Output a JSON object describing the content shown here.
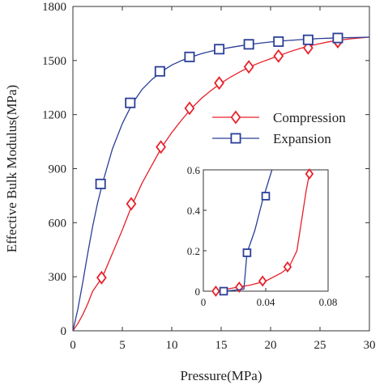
{
  "chart_data": [
    {
      "type": "line",
      "xlabel": "Pressure(MPa)",
      "ylabel": "Effective Bulk Modulus(MPa)",
      "xlim": [
        0,
        30
      ],
      "ylim": [
        0,
        1800
      ],
      "xticks": [
        0,
        5,
        10,
        15,
        20,
        25,
        30
      ],
      "yticks": [
        0,
        300,
        600,
        900,
        1200,
        1500,
        1800
      ],
      "grid": false,
      "legend_position": "center-right",
      "series": [
        {
          "name": "Compression",
          "color": "#e8202a",
          "marker": "diamond",
          "curve_x": [
            0,
            0.5,
            1,
            1.5,
            2,
            2.5,
            3,
            4,
            5,
            6,
            7,
            8,
            9,
            10,
            11,
            12,
            13,
            14,
            15,
            16,
            17,
            18,
            19,
            20,
            21,
            22,
            23,
            24,
            25,
            26,
            27,
            28,
            29,
            30
          ],
          "curve_y": [
            0,
            40,
            90,
            150,
            220,
            260,
            300,
            430,
            560,
            700,
            820,
            920,
            1020,
            1100,
            1170,
            1235,
            1290,
            1335,
            1375,
            1410,
            1440,
            1468,
            1490,
            1510,
            1530,
            1550,
            1567,
            1582,
            1594,
            1605,
            1613,
            1620,
            1625,
            1630
          ],
          "marker_x": [
            2.9,
            5.9,
            8.9,
            11.8,
            14.8,
            17.8,
            20.8,
            23.8,
            26.8
          ],
          "marker_y": [
            295,
            705,
            1020,
            1235,
            1375,
            1465,
            1525,
            1570,
            1605
          ]
        },
        {
          "name": "Expansion",
          "color": "#2a3f98",
          "marker": "square",
          "curve_x": [
            0,
            0.5,
            1,
            1.5,
            2,
            2.5,
            3,
            4,
            5,
            6,
            7,
            8,
            9,
            10,
            11,
            12,
            13,
            14,
            15,
            16,
            17,
            18,
            19,
            20,
            21,
            22,
            23,
            24,
            25,
            26,
            27,
            28,
            29,
            30
          ],
          "curve_y": [
            0,
            120,
            270,
            430,
            580,
            710,
            820,
            1010,
            1150,
            1260,
            1340,
            1395,
            1440,
            1475,
            1500,
            1520,
            1538,
            1552,
            1563,
            1573,
            1582,
            1590,
            1597,
            1603,
            1608,
            1612,
            1616,
            1619,
            1622,
            1624,
            1626,
            1627,
            1628,
            1630
          ],
          "marker_x": [
            2.8,
            5.8,
            8.8,
            11.8,
            14.8,
            17.8,
            20.8,
            23.8,
            26.8
          ],
          "marker_y": [
            815,
            1265,
            1440,
            1520,
            1563,
            1590,
            1605,
            1615,
            1625
          ]
        }
      ]
    },
    {
      "type": "line",
      "inset": true,
      "xlabel": "",
      "ylabel": "",
      "xlim": [
        0,
        0.08
      ],
      "ylim": [
        0,
        0.6
      ],
      "xticks": [
        0,
        0.04,
        0.08
      ],
      "yticks": [
        0,
        0.2,
        0.4,
        0.6
      ],
      "series": [
        {
          "name": "Compression",
          "color": "#e8202a",
          "marker": "diamond",
          "curve_x": [
            0.008,
            0.015,
            0.022,
            0.03,
            0.04,
            0.05,
            0.055,
            0.06,
            0.064,
            0.066,
            0.068
          ],
          "curve_y": [
            0.0,
            0.01,
            0.02,
            0.03,
            0.05,
            0.09,
            0.12,
            0.2,
            0.4,
            0.5,
            0.58
          ],
          "marker_x": [
            0.008,
            0.023,
            0.038,
            0.054,
            0.068
          ],
          "marker_y": [
            0.0,
            0.02,
            0.05,
            0.12,
            0.58
          ]
        },
        {
          "name": "Expansion",
          "color": "#2a3f98",
          "marker": "square",
          "curve_x": [
            0.013,
            0.02,
            0.026,
            0.027,
            0.028,
            0.033,
            0.038,
            0.042,
            0.044
          ],
          "curve_y": [
            0.0,
            0.005,
            0.01,
            0.1,
            0.19,
            0.3,
            0.45,
            0.55,
            0.6
          ],
          "marker_x": [
            0.013,
            0.028,
            0.04
          ],
          "marker_y": [
            0.0,
            0.19,
            0.47
          ]
        }
      ]
    }
  ]
}
